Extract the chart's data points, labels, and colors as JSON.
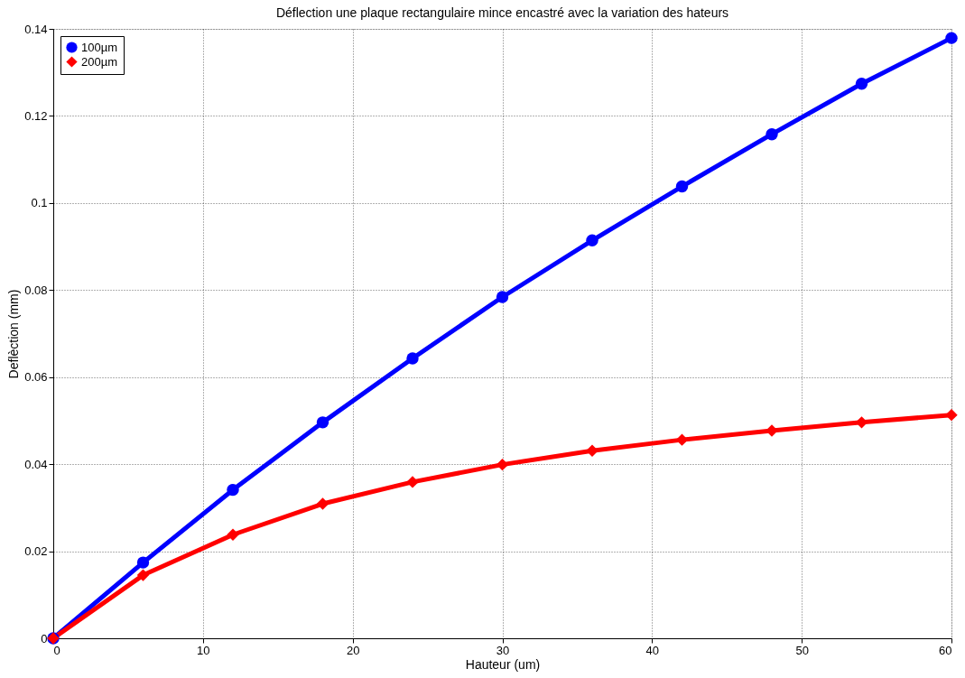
{
  "chart_data": {
    "type": "line",
    "title": "Déflection une plaque rectangulaire mince encastré avec la variation des hateurs",
    "xlabel": "Hauteur (um)",
    "ylabel": "Deflèction (mm)",
    "x": [
      0,
      6,
      12,
      18,
      24,
      30,
      36,
      42,
      48,
      54,
      60
    ],
    "series": [
      {
        "name": "100µm",
        "color": "#0000ff",
        "marker": "circle",
        "values": [
          0,
          0.0174,
          0.0341,
          0.0496,
          0.0643,
          0.0784,
          0.0914,
          0.1038,
          0.1158,
          0.1274,
          0.1379
        ]
      },
      {
        "name": "200µm",
        "color": "#ff0000",
        "marker": "diamond",
        "values": [
          0,
          0.0145,
          0.0238,
          0.0309,
          0.0359,
          0.0399,
          0.0431,
          0.0456,
          0.0477,
          0.0496,
          0.0513
        ]
      }
    ],
    "xlim": [
      0,
      60
    ],
    "xticks": [
      0,
      10,
      20,
      30,
      40,
      50,
      60
    ],
    "ylim": [
      0,
      0.14
    ],
    "yticks": [
      0,
      0.02,
      0.04,
      0.06,
      0.08,
      0.1,
      0.12,
      0.14
    ],
    "grid": true,
    "legend": "top left",
    "line_style": "solid"
  }
}
